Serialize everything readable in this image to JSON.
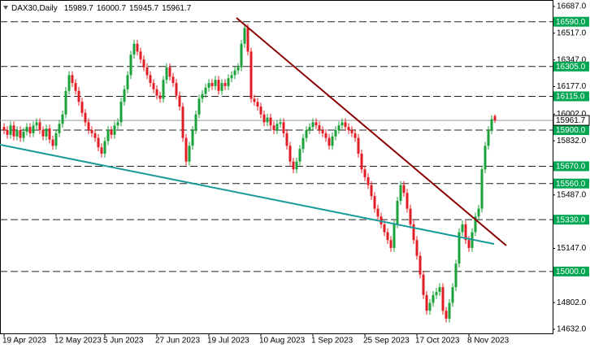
{
  "chart_data": {
    "type": "candlestick",
    "title": "DAX30,Daily",
    "header_ohlc": [
      "15989.7",
      "16000.7",
      "15945.7",
      "15961.7"
    ],
    "up_color": "#1aa33a",
    "down_color": "#e01c24",
    "ylim": [
      14606,
      16718
    ],
    "yticks": [
      {
        "value": 16687,
        "label": "16687.0"
      },
      {
        "value": 16517,
        "label": "16517.0"
      },
      {
        "value": 16347,
        "label": "16347.0"
      },
      {
        "value": 16177,
        "label": "16177.0"
      },
      {
        "value": 16002,
        "label": "16002.0"
      },
      {
        "value": 15832,
        "label": "15832.0"
      },
      {
        "value": 15487,
        "label": "15487.0"
      },
      {
        "value": 15147,
        "label": "15147.0"
      },
      {
        "value": 14802,
        "label": "14802.0"
      },
      {
        "value": 14632,
        "label": "14632.0"
      }
    ],
    "levels": [
      {
        "value": 16590,
        "label": "16590.0"
      },
      {
        "value": 16305,
        "label": "16305.0"
      },
      {
        "value": 16115,
        "label": "16115.0"
      },
      {
        "value": 15900,
        "label": "15900.0"
      },
      {
        "value": 15670,
        "label": "15670.0"
      },
      {
        "value": 15560,
        "label": "15560.0"
      },
      {
        "value": 15330,
        "label": "15330.0"
      },
      {
        "value": 15000,
        "label": "15000.0"
      }
    ],
    "level_color": "#00a651",
    "current_price": {
      "value": 15961.7,
      "label": "15961.7"
    },
    "categories": [
      "19 Apr 2023",
      null,
      null,
      null,
      null,
      null,
      null,
      null,
      null,
      null,
      null,
      null,
      null,
      null,
      null,
      null,
      "12 May 2023",
      null,
      null,
      null,
      null,
      null,
      null,
      null,
      null,
      null,
      null,
      null,
      null,
      null,
      null,
      "5 Jun 2023",
      null,
      null,
      null,
      null,
      null,
      null,
      null,
      null,
      null,
      null,
      null,
      null,
      null,
      null,
      null,
      "27 Jun 2023",
      null,
      null,
      null,
      null,
      null,
      null,
      null,
      null,
      null,
      null,
      null,
      null,
      null,
      null,
      null,
      "19 Jul 2023",
      null,
      null,
      null,
      null,
      null,
      null,
      null,
      null,
      null,
      null,
      null,
      null,
      null,
      null,
      null,
      "10 Aug 2023",
      null,
      null,
      null,
      null,
      null,
      null,
      null,
      null,
      null,
      null,
      null,
      null,
      null,
      null,
      null,
      "1 Sep 2023",
      null,
      null,
      null,
      null,
      null,
      null,
      null,
      null,
      null,
      null,
      null,
      null,
      null,
      null,
      null,
      "25 Sep 2023",
      null,
      null,
      null,
      null,
      null,
      null,
      null,
      null,
      null,
      null,
      null,
      null,
      null,
      null,
      null,
      "17 Oct 2023",
      null,
      null,
      null,
      null,
      null,
      null,
      null,
      null,
      null,
      null,
      null,
      null,
      null,
      null,
      null,
      "8 Nov 2023",
      null,
      null,
      null,
      null,
      null,
      null,
      null,
      null
    ],
    "candles": [
      [
        15920,
        15945,
        15875,
        15900
      ],
      [
        15900,
        15925,
        15845,
        15870
      ],
      [
        15870,
        15955,
        15845,
        15930
      ],
      [
        15930,
        15955,
        15835,
        15860
      ],
      [
        15860,
        15925,
        15835,
        15900
      ],
      [
        15900,
        15925,
        15825,
        15850
      ],
      [
        15850,
        15915,
        15825,
        15890
      ],
      [
        15890,
        15945,
        15865,
        15920
      ],
      [
        15920,
        15945,
        15855,
        15880
      ],
      [
        15880,
        15955,
        15855,
        15930
      ],
      [
        15930,
        15975,
        15905,
        15950
      ],
      [
        15950,
        15975,
        15875,
        15900
      ],
      [
        15900,
        15925,
        15835,
        15860
      ],
      [
        15860,
        15935,
        15835,
        15910
      ],
      [
        15910,
        15935,
        15815,
        15840
      ],
      [
        15840,
        15865,
        15775,
        15800
      ],
      [
        15800,
        15905,
        15775,
        15880
      ],
      [
        15880,
        15965,
        15855,
        15940
      ],
      [
        15940,
        16025,
        15915,
        16000
      ],
      [
        16000,
        16175,
        15975,
        16150
      ],
      [
        16150,
        16275,
        16125,
        16250
      ],
      [
        16250,
        16275,
        16175,
        16200
      ],
      [
        16200,
        16225,
        16125,
        16150
      ],
      [
        16150,
        16175,
        16055,
        16080
      ],
      [
        16080,
        16105,
        15985,
        16010
      ],
      [
        16010,
        16035,
        15925,
        15950
      ],
      [
        15950,
        15975,
        15875,
        15900
      ],
      [
        15900,
        15925,
        15855,
        15880
      ],
      [
        15880,
        15905,
        15825,
        15850
      ],
      [
        15850,
        15875,
        15765,
        15790
      ],
      [
        15790,
        15815,
        15725,
        15750
      ],
      [
        15750,
        15855,
        15725,
        15830
      ],
      [
        15830,
        15925,
        15805,
        15900
      ],
      [
        15900,
        15925,
        15845,
        15870
      ],
      [
        15870,
        15955,
        15845,
        15930
      ],
      [
        15930,
        15975,
        15905,
        15950
      ],
      [
        15950,
        16105,
        15925,
        16080
      ],
      [
        16080,
        16185,
        16055,
        16160
      ],
      [
        16160,
        16275,
        16135,
        16250
      ],
      [
        16250,
        16405,
        16225,
        16380
      ],
      [
        16380,
        16475,
        16355,
        16450
      ],
      [
        16450,
        16475,
        16375,
        16400
      ],
      [
        16400,
        16425,
        16325,
        16350
      ],
      [
        16350,
        16375,
        16275,
        16300
      ],
      [
        16300,
        16325,
        16225,
        16250
      ],
      [
        16250,
        16275,
        16175,
        16200
      ],
      [
        16200,
        16225,
        16135,
        16160
      ],
      [
        16160,
        16185,
        16095,
        16120
      ],
      [
        16120,
        16145,
        16075,
        16100
      ],
      [
        16100,
        16245,
        16075,
        16220
      ],
      [
        16220,
        16325,
        16195,
        16300
      ],
      [
        16300,
        16325,
        16215,
        16240
      ],
      [
        16240,
        16265,
        16175,
        16200
      ],
      [
        16200,
        16225,
        16095,
        16120
      ],
      [
        16120,
        16145,
        16025,
        16050
      ],
      [
        16050,
        16075,
        15825,
        15850
      ],
      [
        15850,
        15875,
        15675,
        15700
      ],
      [
        15700,
        15825,
        15675,
        15800
      ],
      [
        15800,
        15925,
        15775,
        15900
      ],
      [
        15900,
        16025,
        15875,
        16000
      ],
      [
        16000,
        16125,
        15975,
        16100
      ],
      [
        16100,
        16155,
        16075,
        16130
      ],
      [
        16130,
        16195,
        16105,
        16170
      ],
      [
        16170,
        16225,
        16145,
        16200
      ],
      [
        16200,
        16225,
        16155,
        16180
      ],
      [
        16180,
        16245,
        16155,
        16220
      ],
      [
        16220,
        16245,
        16125,
        16150
      ],
      [
        16150,
        16225,
        16125,
        16200
      ],
      [
        16200,
        16225,
        16155,
        16180
      ],
      [
        16180,
        16255,
        16155,
        16230
      ],
      [
        16230,
        16275,
        16205,
        16250
      ],
      [
        16250,
        16305,
        16225,
        16280
      ],
      [
        16280,
        16325,
        16255,
        16300
      ],
      [
        16300,
        16475,
        16275,
        16450
      ],
      [
        16450,
        16575,
        16425,
        16550
      ],
      [
        16550,
        16575,
        16375,
        16400
      ],
      [
        16400,
        16425,
        16075,
        16100
      ],
      [
        16100,
        16125,
        16055,
        16080
      ],
      [
        16080,
        16105,
        16025,
        16050
      ],
      [
        16050,
        16075,
        15975,
        16000
      ],
      [
        16000,
        16025,
        15925,
        15950
      ],
      [
        15950,
        16005,
        15925,
        15980
      ],
      [
        15980,
        16005,
        15905,
        15930
      ],
      [
        15930,
        15955,
        15875,
        15900
      ],
      [
        15900,
        15965,
        15875,
        15940
      ],
      [
        15940,
        15975,
        15915,
        15950
      ],
      [
        15950,
        15975,
        15855,
        15880
      ],
      [
        15880,
        15905,
        15775,
        15800
      ],
      [
        15800,
        15825,
        15675,
        15700
      ],
      [
        15700,
        15725,
        15625,
        15650
      ],
      [
        15650,
        15725,
        15625,
        15700
      ],
      [
        15700,
        15805,
        15675,
        15780
      ],
      [
        15780,
        15875,
        15755,
        15850
      ],
      [
        15850,
        15925,
        15825,
        15900
      ],
      [
        15900,
        15945,
        15875,
        15920
      ],
      [
        15920,
        15975,
        15895,
        15950
      ],
      [
        15950,
        15975,
        15905,
        15930
      ],
      [
        15930,
        15955,
        15875,
        15900
      ],
      [
        15900,
        15925,
        15855,
        15880
      ],
      [
        15880,
        15905,
        15825,
        15850
      ],
      [
        15850,
        15875,
        15775,
        15800
      ],
      [
        15800,
        15885,
        15775,
        15860
      ],
      [
        15860,
        15925,
        15835,
        15900
      ],
      [
        15900,
        15955,
        15875,
        15930
      ],
      [
        15930,
        15975,
        15905,
        15950
      ],
      [
        15950,
        15975,
        15895,
        15920
      ],
      [
        15920,
        15945,
        15875,
        15900
      ],
      [
        15900,
        15925,
        15855,
        15880
      ],
      [
        15880,
        15905,
        15825,
        15850
      ],
      [
        15850,
        15875,
        15725,
        15750
      ],
      [
        15750,
        15775,
        15625,
        15650
      ],
      [
        15650,
        15675,
        15575,
        15600
      ],
      [
        15600,
        15625,
        15525,
        15550
      ],
      [
        15550,
        15575,
        15455,
        15480
      ],
      [
        15480,
        15505,
        15375,
        15400
      ],
      [
        15400,
        15425,
        15325,
        15350
      ],
      [
        15350,
        15375,
        15275,
        15300
      ],
      [
        15300,
        15325,
        15225,
        15250
      ],
      [
        15250,
        15275,
        15175,
        15200
      ],
      [
        15200,
        15225,
        15125,
        15150
      ],
      [
        15150,
        15325,
        15125,
        15300
      ],
      [
        15300,
        15475,
        15275,
        15450
      ],
      [
        15450,
        15575,
        15425,
        15550
      ],
      [
        15550,
        15575,
        15475,
        15500
      ],
      [
        15500,
        15525,
        15375,
        15400
      ],
      [
        15400,
        15425,
        15275,
        15300
      ],
      [
        15300,
        15325,
        15175,
        15200
      ],
      [
        15200,
        15225,
        15075,
        15100
      ],
      [
        15100,
        15125,
        14955,
        14980
      ],
      [
        14980,
        15005,
        14825,
        14850
      ],
      [
        14850,
        14875,
        14725,
        14750
      ],
      [
        14750,
        14825,
        14725,
        14800
      ],
      [
        14800,
        14875,
        14775,
        14850
      ],
      [
        14850,
        14895,
        14825,
        14870
      ],
      [
        14870,
        14925,
        14845,
        14900
      ],
      [
        14900,
        14925,
        14725,
        14750
      ],
      [
        14750,
        14775,
        14675,
        14700
      ],
      [
        14700,
        14825,
        14675,
        14800
      ],
      [
        14800,
        14925,
        14775,
        14900
      ],
      [
        14900,
        15075,
        14875,
        15050
      ],
      [
        15050,
        15275,
        15025,
        15250
      ],
      [
        15250,
        15325,
        15225,
        15300
      ],
      [
        15300,
        15325,
        15175,
        15200
      ],
      [
        15200,
        15225,
        15125,
        15150
      ],
      [
        15150,
        15275,
        15125,
        15250
      ],
      [
        15250,
        15375,
        15225,
        15350
      ],
      [
        15350,
        15425,
        15325,
        15400
      ],
      [
        15400,
        15675,
        15375,
        15650
      ],
      [
        15650,
        15825,
        15625,
        15800
      ],
      [
        15800,
        15925,
        15775,
        15900
      ],
      [
        15900,
        15995,
        15875,
        15970
      ],
      [
        15989.7,
        16000.7,
        15945.7,
        15961.7
      ]
    ]
  }
}
